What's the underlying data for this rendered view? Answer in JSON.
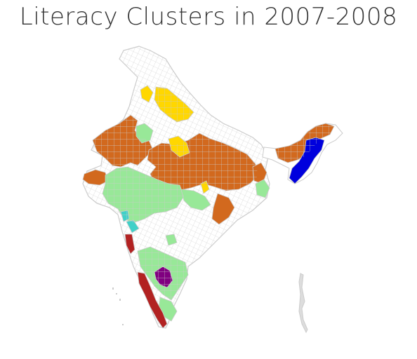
{
  "title": "Literacy Clusters in 2007-2008",
  "colors": {
    "background": "#ffffff",
    "border": "#cccccc",
    "no_data": "#ffffff",
    "cluster_orange": "#d2691e",
    "cluster_yellow": "#ffd700",
    "cluster_lightgreen": "#98e898",
    "cluster_turquoise": "#40d0c8",
    "cluster_darkred": "#b22222",
    "cluster_purple": "#800080",
    "cluster_blue": "#0000dd"
  }
}
